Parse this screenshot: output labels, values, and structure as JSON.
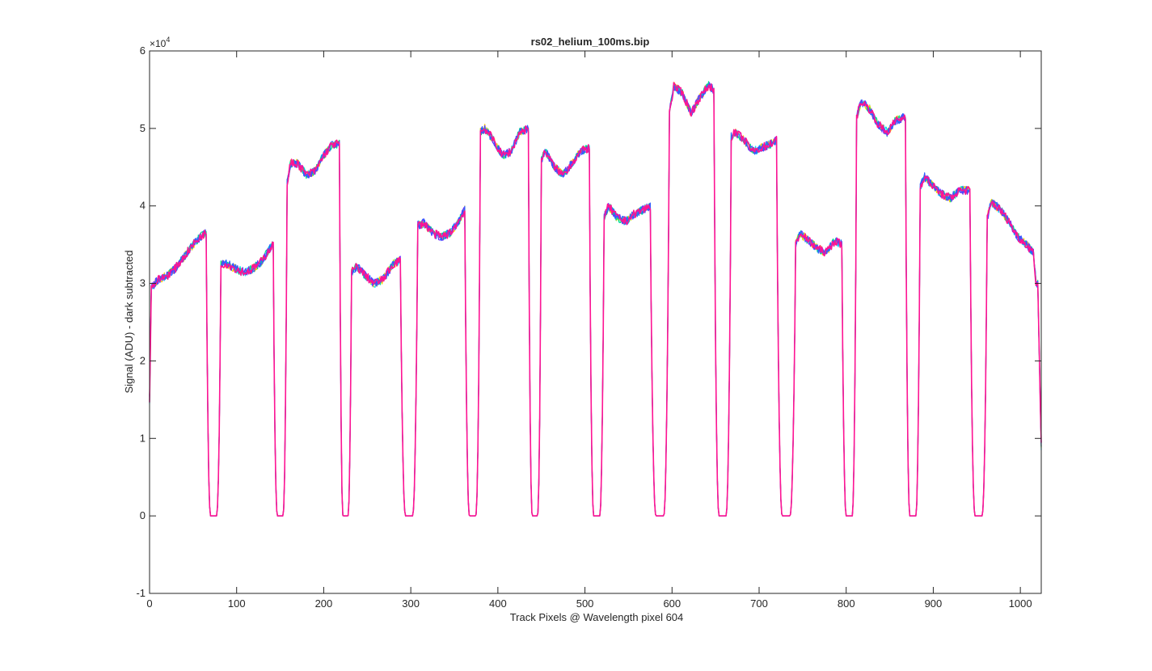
{
  "chart_data": {
    "type": "line",
    "title": "rs02_helium_100ms.bip",
    "xlabel": "Track Pixels @ Wavelength pixel 604",
    "ylabel": "Signal (ADU) - dark subtracted",
    "exponent_base": "×10",
    "exponent_power": "4",
    "xlim": [
      0,
      1024
    ],
    "ylim": [
      -10000,
      60000
    ],
    "x_ticks": [
      0,
      100,
      200,
      300,
      400,
      500,
      600,
      700,
      800,
      900,
      1000
    ],
    "x_tick_labels": [
      "0",
      "100",
      "200",
      "300",
      "400",
      "500",
      "600",
      "700",
      "800",
      "900",
      "1000"
    ],
    "y_ticks": [
      -10000,
      0,
      10000,
      20000,
      30000,
      40000,
      50000,
      60000
    ],
    "y_tick_labels": [
      "-1",
      "0",
      "1",
      "2",
      "3",
      "4",
      "5",
      "6"
    ],
    "grid": false,
    "legend": "none",
    "series_colors": [
      "#00d8ff",
      "#ffd000",
      "#00e08a",
      "#6a2cff",
      "#3060ff",
      "#ff1493"
    ],
    "segments": [
      {
        "x_start": 0,
        "x_end": 65,
        "points": [
          [
            0,
            15000
          ],
          [
            2,
            29500
          ],
          [
            10,
            30500
          ],
          [
            20,
            31000
          ],
          [
            30,
            32000
          ],
          [
            40,
            33500
          ],
          [
            50,
            35000
          ],
          [
            60,
            36200
          ],
          [
            65,
            36500
          ]
        ]
      },
      {
        "x_start": 82,
        "x_end": 142,
        "points": [
          [
            82,
            32500
          ],
          [
            90,
            32500
          ],
          [
            100,
            31800
          ],
          [
            110,
            31400
          ],
          [
            120,
            32000
          ],
          [
            130,
            33000
          ],
          [
            138,
            34500
          ],
          [
            142,
            35000
          ]
        ]
      },
      {
        "x_start": 158,
        "x_end": 218,
        "points": [
          [
            158,
            43000
          ],
          [
            162,
            45500
          ],
          [
            170,
            45500
          ],
          [
            180,
            44000
          ],
          [
            190,
            44500
          ],
          [
            200,
            46500
          ],
          [
            210,
            48000
          ],
          [
            218,
            48000
          ]
        ]
      },
      {
        "x_start": 232,
        "x_end": 288,
        "points": [
          [
            232,
            31500
          ],
          [
            238,
            32200
          ],
          [
            248,
            31000
          ],
          [
            258,
            30000
          ],
          [
            268,
            30500
          ],
          [
            280,
            32500
          ],
          [
            288,
            33000
          ]
        ]
      },
      {
        "x_start": 308,
        "x_end": 362,
        "points": [
          [
            308,
            37500
          ],
          [
            315,
            37800
          ],
          [
            325,
            36500
          ],
          [
            335,
            36000
          ],
          [
            345,
            36500
          ],
          [
            355,
            38000
          ],
          [
            362,
            39500
          ]
        ]
      },
      {
        "x_start": 380,
        "x_end": 435,
        "points": [
          [
            380,
            49500
          ],
          [
            385,
            50000
          ],
          [
            395,
            48500
          ],
          [
            405,
            46500
          ],
          [
            415,
            47000
          ],
          [
            425,
            49500
          ],
          [
            435,
            50000
          ]
        ]
      },
      {
        "x_start": 450,
        "x_end": 505,
        "points": [
          [
            450,
            46000
          ],
          [
            455,
            47000
          ],
          [
            465,
            45000
          ],
          [
            475,
            44000
          ],
          [
            485,
            45500
          ],
          [
            495,
            47000
          ],
          [
            505,
            47500
          ]
        ]
      },
      {
        "x_start": 522,
        "x_end": 575,
        "points": [
          [
            522,
            38500
          ],
          [
            527,
            40000
          ],
          [
            537,
            38500
          ],
          [
            547,
            38000
          ],
          [
            557,
            39000
          ],
          [
            567,
            39500
          ],
          [
            575,
            40000
          ]
        ]
      },
      {
        "x_start": 597,
        "x_end": 648,
        "points": [
          [
            597,
            52000
          ],
          [
            602,
            55500
          ],
          [
            612,
            54500
          ],
          [
            622,
            52000
          ],
          [
            632,
            54000
          ],
          [
            642,
            55500
          ],
          [
            648,
            55000
          ]
        ]
      },
      {
        "x_start": 668,
        "x_end": 720,
        "points": [
          [
            668,
            49000
          ],
          [
            673,
            49500
          ],
          [
            683,
            48500
          ],
          [
            693,
            47000
          ],
          [
            703,
            47500
          ],
          [
            713,
            48000
          ],
          [
            720,
            48500
          ]
        ]
      },
      {
        "x_start": 742,
        "x_end": 795,
        "points": [
          [
            742,
            35000
          ],
          [
            747,
            36500
          ],
          [
            757,
            35500
          ],
          [
            767,
            34500
          ],
          [
            777,
            34000
          ],
          [
            787,
            35500
          ],
          [
            795,
            35000
          ]
        ]
      },
      {
        "x_start": 812,
        "x_end": 868,
        "points": [
          [
            812,
            51500
          ],
          [
            817,
            53500
          ],
          [
            827,
            52500
          ],
          [
            837,
            50500
          ],
          [
            847,
            49500
          ],
          [
            857,
            51000
          ],
          [
            868,
            51500
          ]
        ]
      },
      {
        "x_start": 885,
        "x_end": 942,
        "points": [
          [
            885,
            42500
          ],
          [
            890,
            43800
          ],
          [
            900,
            42500
          ],
          [
            910,
            41500
          ],
          [
            920,
            41000
          ],
          [
            930,
            42000
          ],
          [
            942,
            42000
          ]
        ]
      },
      {
        "x_start": 962,
        "x_end": 1024,
        "points": [
          [
            962,
            38500
          ],
          [
            967,
            40500
          ],
          [
            977,
            39500
          ],
          [
            987,
            38000
          ],
          [
            997,
            36000
          ],
          [
            1007,
            35000
          ],
          [
            1015,
            34000
          ],
          [
            1018,
            30000
          ],
          [
            1020,
            30000
          ],
          [
            1024,
            9000
          ]
        ]
      }
    ]
  }
}
